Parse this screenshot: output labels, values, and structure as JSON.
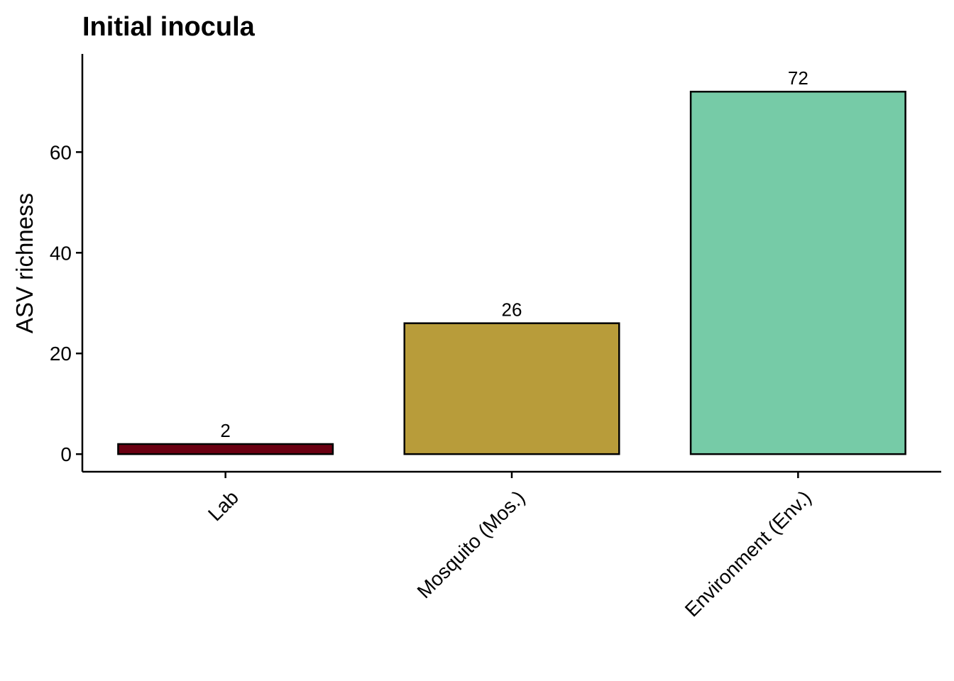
{
  "chart_data": {
    "type": "bar",
    "title": "Initial inocula",
    "xlabel": "",
    "ylabel": "ASV richness",
    "categories": [
      "Lab",
      "Mosquito (Mos.)",
      "Environment (Env.)"
    ],
    "values": [
      2,
      26,
      72
    ],
    "data_labels": [
      "2",
      "26",
      "72"
    ],
    "colors": [
      "#6b0012",
      "#b89c3a",
      "#76cba7"
    ],
    "yticks": [
      0,
      20,
      40,
      60
    ],
    "ytick_labels": [
      "0",
      "20",
      "40",
      "60"
    ],
    "ylim": [
      -3.5,
      79.5
    ],
    "grid": false,
    "legend": "none"
  }
}
